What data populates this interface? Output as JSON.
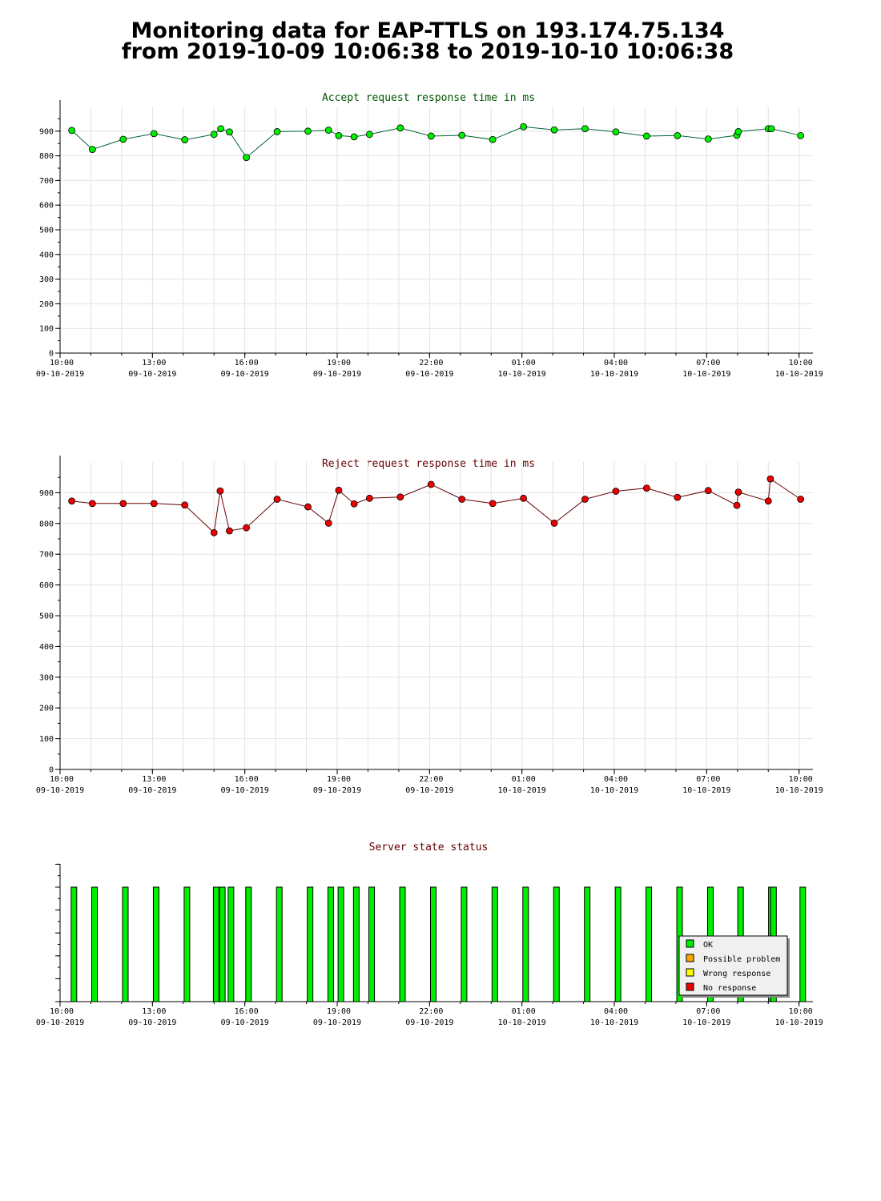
{
  "page": {
    "title_line1": "Monitoring data for EAP-TTLS on 193.174.75.134",
    "title_line2": "from 2019-10-09 10:06:38 to 2019-10-10 10:06:38"
  },
  "colors": {
    "accept_line": "#006633",
    "accept_marker": "#00ee00",
    "accept_title": "#005500",
    "reject_line": "#660000",
    "reject_marker": "#ee0000",
    "reject_title": "#660000",
    "status_title": "#660000",
    "ok": "#00ee00",
    "possible_problem": "#ffa500",
    "wrong_response": "#ffff00",
    "no_response": "#ee0000"
  },
  "chart_data": [
    {
      "type": "line",
      "title": "Accept request response time in ms",
      "ylim": [
        0,
        1000
      ],
      "yticks": [
        0,
        100,
        200,
        300,
        400,
        500,
        600,
        700,
        800,
        900
      ],
      "xlim_hours": [
        10.0,
        34.45
      ],
      "xticks": [
        {
          "h": 10,
          "time": "10:00",
          "date": "09-10-2019"
        },
        {
          "h": 13,
          "time": "13:00",
          "date": "09-10-2019"
        },
        {
          "h": 16,
          "time": "16:00",
          "date": "09-10-2019"
        },
        {
          "h": 19,
          "time": "19:00",
          "date": "09-10-2019"
        },
        {
          "h": 22,
          "time": "22:00",
          "date": "09-10-2019"
        },
        {
          "h": 25,
          "time": "01:00",
          "date": "10-10-2019"
        },
        {
          "h": 28,
          "time": "04:00",
          "date": "10-10-2019"
        },
        {
          "h": 31,
          "time": "07:00",
          "date": "10-10-2019"
        },
        {
          "h": 34,
          "time": "10:00",
          "date": "10-10-2019"
        }
      ],
      "grid": true,
      "series": [
        {
          "x": [
            10.38,
            11.05,
            12.05,
            13.05,
            14.05,
            15.0,
            15.22,
            15.5,
            16.05,
            17.05,
            18.05,
            18.72,
            19.05,
            19.55,
            20.05,
            21.05,
            22.05,
            23.05,
            24.05,
            25.05,
            26.05,
            27.05,
            28.05,
            29.05,
            30.05,
            31.05,
            31.98,
            32.03,
            33.0,
            33.1,
            34.05
          ],
          "y": [
            903,
            826,
            867,
            890,
            865,
            887,
            910,
            897,
            793,
            898,
            900,
            904,
            882,
            877,
            887,
            913,
            880,
            883,
            866,
            918,
            905,
            910,
            897,
            880,
            882,
            868,
            883,
            898,
            910,
            910,
            882
          ]
        }
      ]
    },
    {
      "type": "line",
      "title": "Reject request response time in ms",
      "ylim": [
        0,
        1000
      ],
      "yticks": [
        0,
        100,
        200,
        300,
        400,
        500,
        600,
        700,
        800,
        900
      ],
      "xlim_hours": [
        10.0,
        34.45
      ],
      "xticks": [
        {
          "h": 10,
          "time": "10:00",
          "date": "09-10-2019"
        },
        {
          "h": 13,
          "time": "13:00",
          "date": "09-10-2019"
        },
        {
          "h": 16,
          "time": "16:00",
          "date": "09-10-2019"
        },
        {
          "h": 19,
          "time": "19:00",
          "date": "09-10-2019"
        },
        {
          "h": 22,
          "time": "22:00",
          "date": "09-10-2019"
        },
        {
          "h": 25,
          "time": "01:00",
          "date": "10-10-2019"
        },
        {
          "h": 28,
          "time": "04:00",
          "date": "10-10-2019"
        },
        {
          "h": 31,
          "time": "07:00",
          "date": "10-10-2019"
        },
        {
          "h": 34,
          "time": "10:00",
          "date": "10-10-2019"
        }
      ],
      "grid": true,
      "series": [
        {
          "x": [
            10.38,
            11.05,
            12.05,
            13.05,
            14.05,
            15.0,
            15.2,
            15.5,
            16.05,
            17.05,
            18.05,
            18.72,
            19.05,
            19.55,
            20.05,
            21.05,
            22.05,
            23.05,
            24.05,
            25.05,
            26.05,
            27.05,
            28.05,
            29.05,
            30.05,
            31.05,
            31.98,
            32.03,
            33.0,
            33.07,
            34.05
          ],
          "y": [
            873,
            865,
            865,
            865,
            860,
            770,
            906,
            776,
            786,
            879,
            854,
            801,
            908,
            864,
            882,
            886,
            927,
            879,
            865,
            882,
            801,
            879,
            905,
            915,
            885,
            907,
            859,
            902,
            873,
            945,
            879
          ]
        }
      ]
    },
    {
      "type": "bar",
      "title": "Server state status",
      "xlim_hours": [
        10.0,
        34.45
      ],
      "xticks": [
        {
          "h": 10,
          "time": "10:00",
          "date": "09-10-2019"
        },
        {
          "h": 13,
          "time": "13:00",
          "date": "09-10-2019"
        },
        {
          "h": 16,
          "time": "16:00",
          "date": "09-10-2019"
        },
        {
          "h": 19,
          "time": "19:00",
          "date": "09-10-2019"
        },
        {
          "h": 22,
          "time": "22:00",
          "date": "09-10-2019"
        },
        {
          "h": 25,
          "time": "01:00",
          "date": "10-10-2019"
        },
        {
          "h": 28,
          "time": "04:00",
          "date": "10-10-2019"
        },
        {
          "h": 31,
          "time": "07:00",
          "date": "10-10-2019"
        },
        {
          "h": 34,
          "time": "10:00",
          "date": "10-10-2019"
        }
      ],
      "legend_position": "bottom-right",
      "legend": [
        {
          "label": "OK",
          "color": "#00ee00"
        },
        {
          "label": "Possible problem",
          "color": "#ffa500"
        },
        {
          "label": "Wrong response",
          "color": "#ffff00"
        },
        {
          "label": "No response",
          "color": "#ee0000"
        }
      ],
      "status_x": [
        10.45,
        11.12,
        12.12,
        13.12,
        14.12,
        15.07,
        15.27,
        15.55,
        16.12,
        17.12,
        18.12,
        18.79,
        19.12,
        19.62,
        20.12,
        21.12,
        22.12,
        23.12,
        24.12,
        25.12,
        26.12,
        27.12,
        28.12,
        29.12,
        30.12,
        31.12,
        32.1,
        33.1,
        33.17,
        34.12
      ],
      "status": [
        "OK",
        "OK",
        "OK",
        "OK",
        "OK",
        "OK",
        "OK",
        "OK",
        "OK",
        "OK",
        "OK",
        "OK",
        "OK",
        "OK",
        "OK",
        "OK",
        "OK",
        "OK",
        "OK",
        "OK",
        "OK",
        "OK",
        "OK",
        "OK",
        "OK",
        "OK",
        "OK",
        "OK",
        "OK",
        "OK"
      ]
    }
  ]
}
